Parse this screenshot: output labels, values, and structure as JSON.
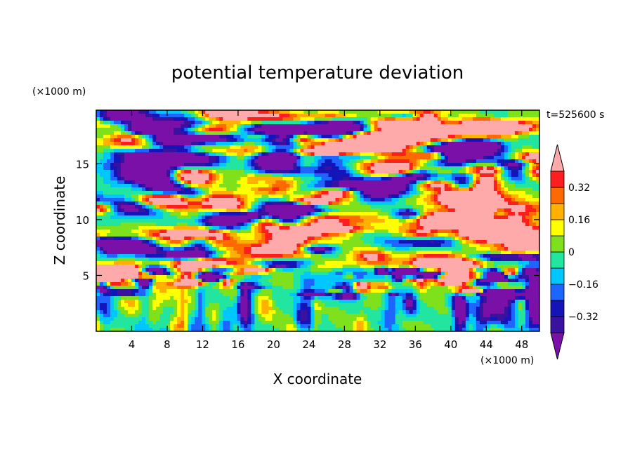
{
  "chart_data": {
    "type": "heatmap",
    "title": "potential temperature deviation",
    "time_label": "t=525600 s",
    "xlabel": "X coordinate",
    "ylabel": "Z coordinate",
    "x_unit": "(×1000 m)",
    "y_unit": "(×1000 m)",
    "xlim": [
      0,
      50
    ],
    "ylim": [
      0,
      19.8
    ],
    "x_ticks": [
      4,
      8,
      12,
      16,
      20,
      24,
      28,
      32,
      36,
      40,
      44,
      48
    ],
    "y_ticks": [
      5,
      10,
      15
    ],
    "colorbar": {
      "tick_values": [
        0.32,
        0.16,
        0,
        -0.16,
        -0.32
      ],
      "tick_labels": [
        "0.32",
        "0.16",
        "0",
        "−0.16",
        "−0.32"
      ],
      "levels": [
        -0.4,
        -0.32,
        -0.24,
        -0.16,
        -0.08,
        0,
        0.08,
        0.16,
        0.24,
        0.32,
        0.4
      ],
      "colors": [
        "#7a10a8",
        "#3a12a0",
        "#1414b8",
        "#1e64ff",
        "#00c8ff",
        "#22e6a0",
        "#7fe01c",
        "#ffff00",
        "#ffb000",
        "#ff6a00",
        "#ff1e1e",
        "#ffaaaa"
      ],
      "extend": "both"
    }
  }
}
